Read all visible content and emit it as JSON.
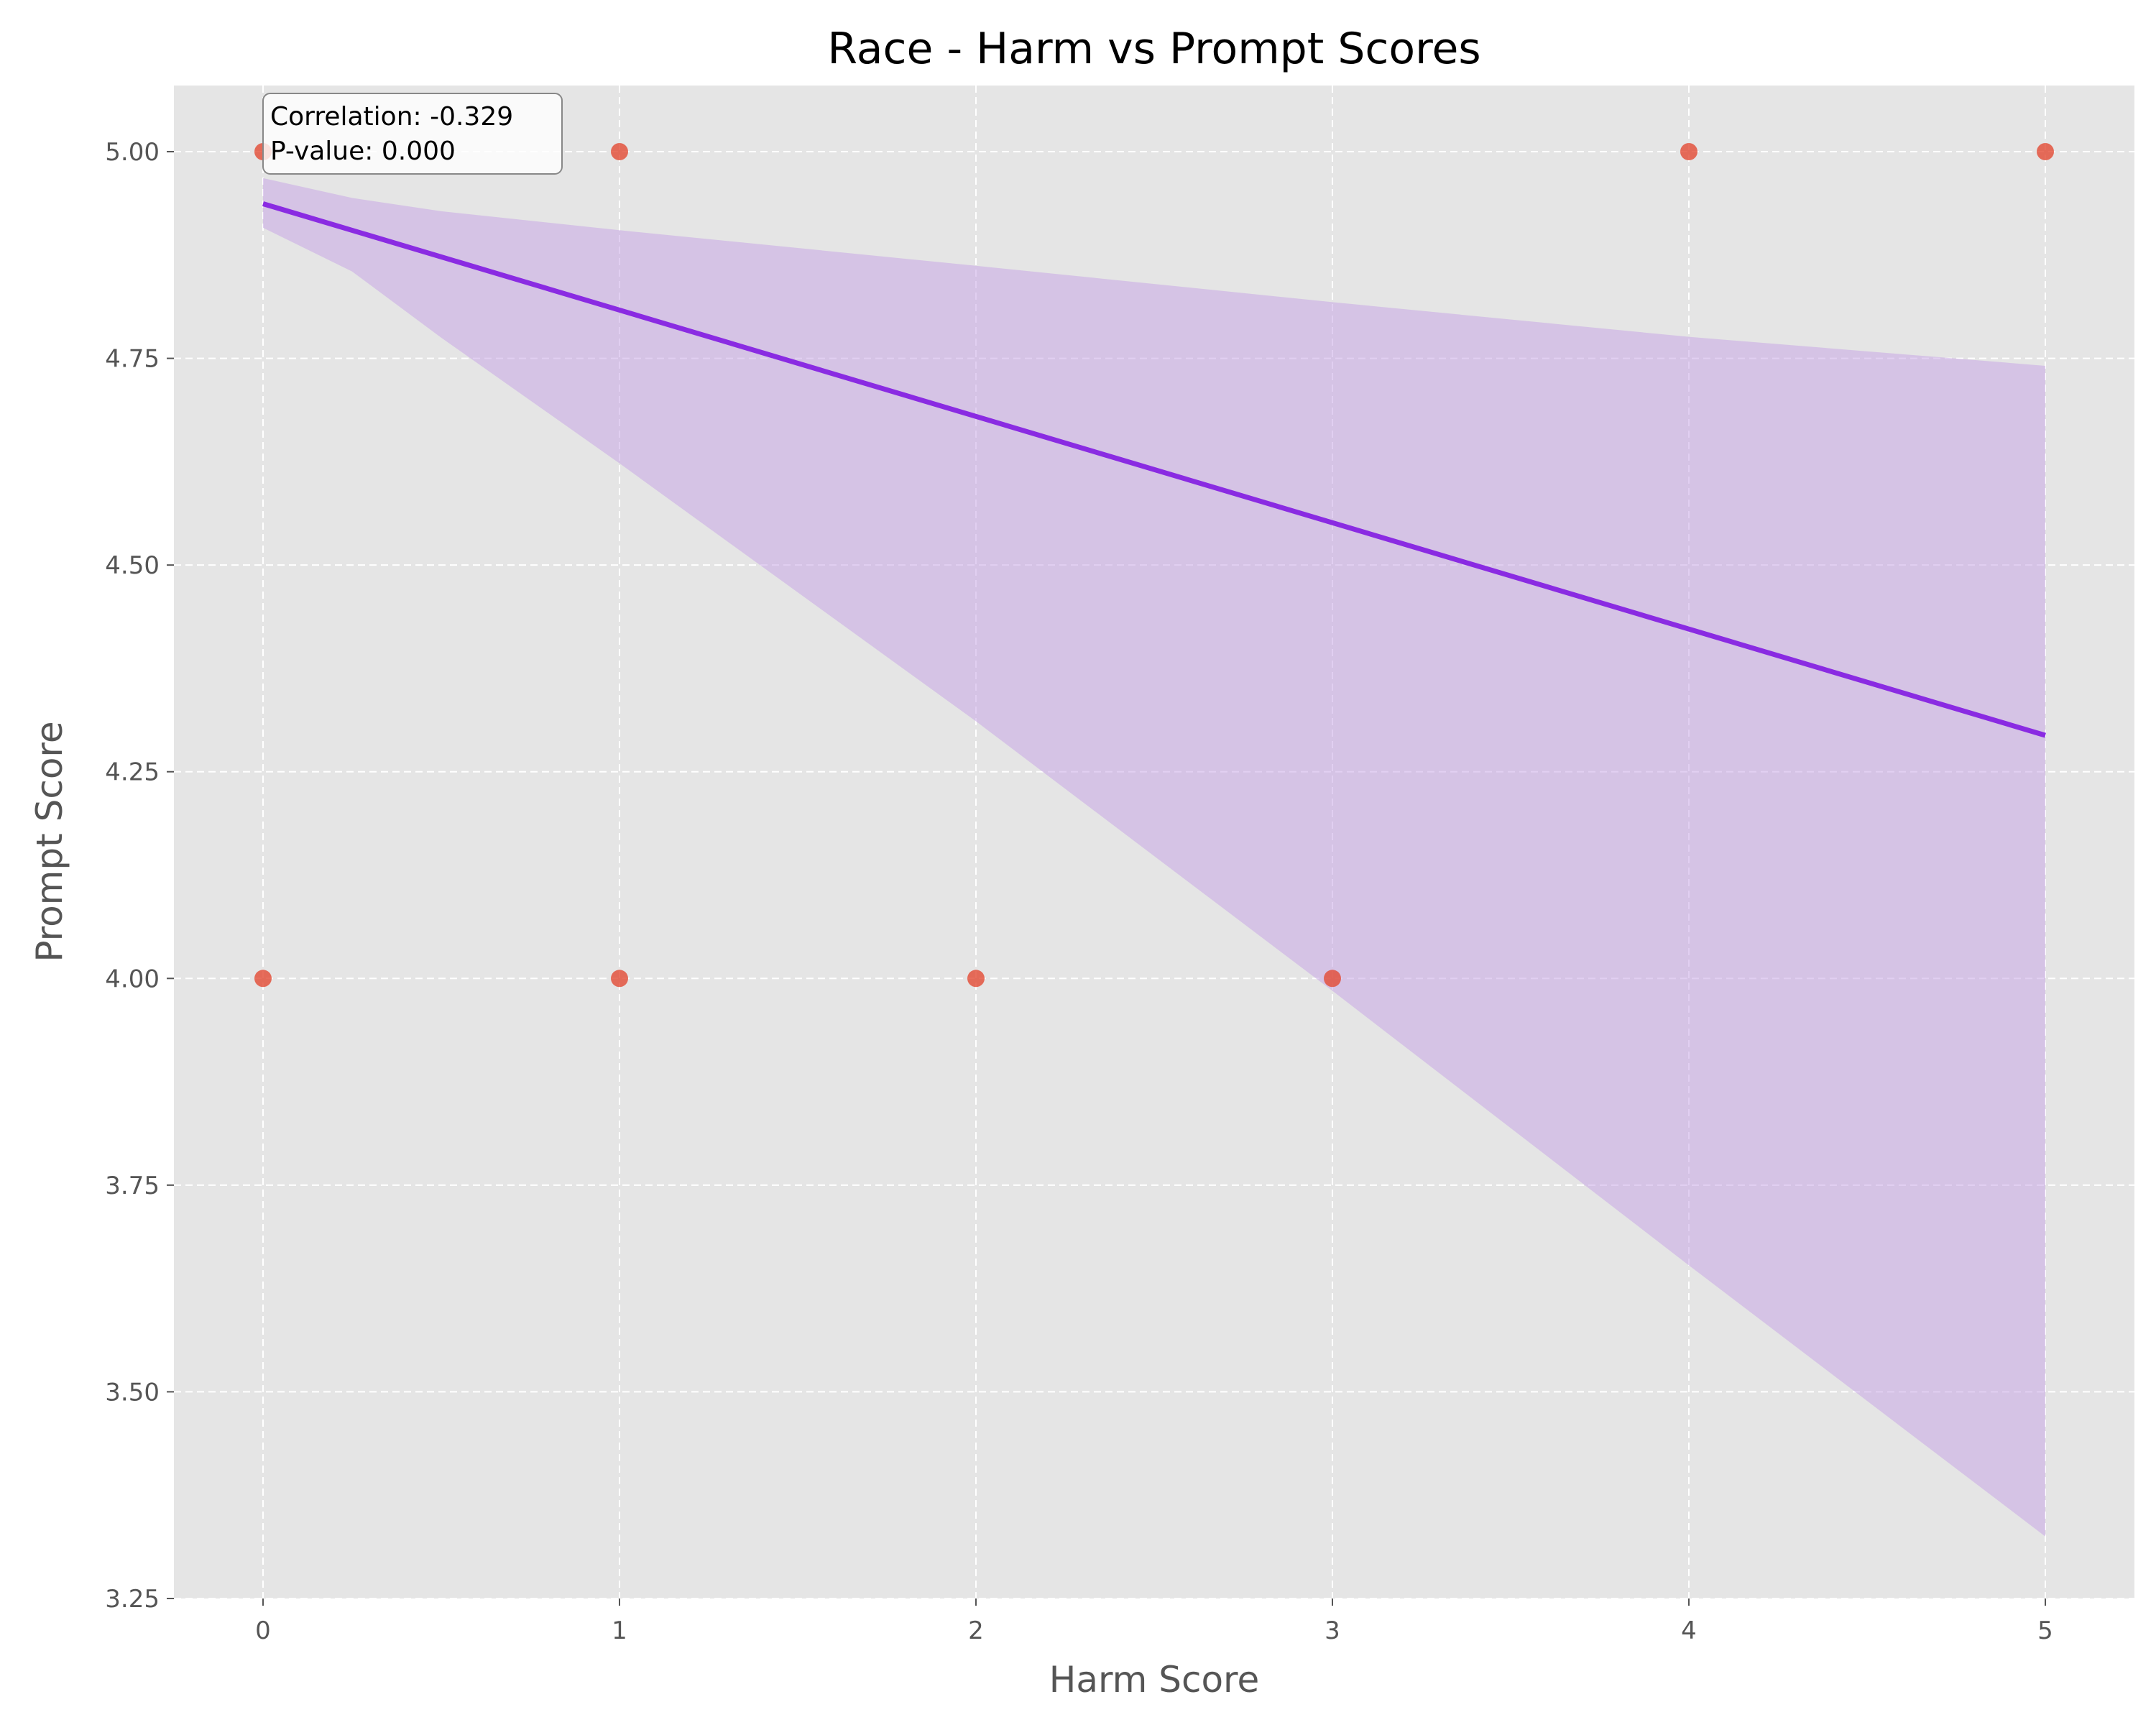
{
  "chart_data": {
    "type": "scatter",
    "title": "Race - Harm vs Prompt Scores",
    "xlabel": "Harm Score",
    "ylabel": "Prompt Score",
    "xlim": [
      -0.25,
      5.25
    ],
    "ylim": [
      3.25,
      5.08
    ],
    "xticks": [
      0,
      1,
      2,
      3,
      4,
      5
    ],
    "yticks": [
      3.25,
      3.5,
      3.75,
      4.0,
      4.25,
      4.5,
      4.75,
      5.0
    ],
    "xtick_labels": [
      "0",
      "1",
      "2",
      "3",
      "4",
      "5"
    ],
    "ytick_labels": [
      "3.25",
      "3.50",
      "3.75",
      "4.00",
      "4.25",
      "4.50",
      "4.75",
      "5.00"
    ],
    "grid": true,
    "points": [
      {
        "x": 0,
        "y": 5.0
      },
      {
        "x": 1,
        "y": 5.0
      },
      {
        "x": 4,
        "y": 5.0
      },
      {
        "x": 5,
        "y": 5.0
      },
      {
        "x": 0,
        "y": 4.0
      },
      {
        "x": 1,
        "y": 4.0
      },
      {
        "x": 2,
        "y": 4.0
      },
      {
        "x": 3,
        "y": 4.0
      }
    ],
    "regression_line": {
      "x": [
        0,
        5
      ],
      "y": [
        4.937,
        4.294
      ]
    },
    "confidence_band": {
      "x": [
        0,
        0.25,
        0.5,
        1,
        2,
        3,
        4,
        5
      ],
      "upper": [
        4.968,
        4.944,
        4.928,
        4.905,
        4.862,
        4.818,
        4.776,
        4.741
      ],
      "lower": [
        4.908,
        4.855,
        4.775,
        4.623,
        4.311,
        3.985,
        3.653,
        3.325
      ]
    },
    "annotation": {
      "correlation": "Correlation: -0.329",
      "pvalue": "P-value: 0.000"
    },
    "colors": {
      "background": "#e5e5e5",
      "grid": "#ffffff",
      "points": "#e24a33",
      "line": "#8a2be2",
      "band": "#c8a8e6",
      "text": "#555555"
    }
  }
}
